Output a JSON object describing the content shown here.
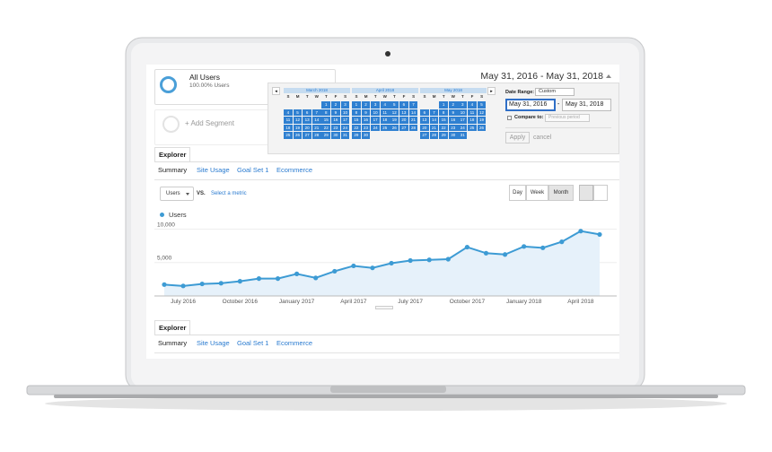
{
  "segments": [
    {
      "title": "All Users",
      "subtitle": "100.00% Users"
    },
    {
      "title": "+ Add Segment"
    }
  ],
  "date_range": "May 31, 2016 - May 31, 2018",
  "calendar": {
    "weekdays": [
      "S",
      "M",
      "T",
      "W",
      "T",
      "F",
      "S"
    ],
    "months": [
      {
        "name": "March 2018",
        "days": [
          null,
          null,
          null,
          null,
          1,
          2,
          3,
          4,
          5,
          6,
          7,
          8,
          9,
          10,
          11,
          12,
          13,
          14,
          15,
          16,
          17,
          18,
          19,
          20,
          21,
          22,
          23,
          24,
          25,
          26,
          27,
          28,
          29,
          30,
          31
        ]
      },
      {
        "name": "April 2018",
        "days": [
          1,
          2,
          3,
          4,
          5,
          6,
          7,
          8,
          9,
          10,
          11,
          12,
          13,
          14,
          15,
          16,
          17,
          18,
          19,
          20,
          21,
          22,
          23,
          24,
          25,
          26,
          27,
          28,
          29,
          30
        ]
      },
      {
        "name": "May 2018",
        "days": [
          null,
          null,
          1,
          2,
          3,
          4,
          5,
          6,
          7,
          8,
          9,
          10,
          11,
          12,
          13,
          14,
          15,
          16,
          17,
          18,
          19,
          20,
          21,
          22,
          23,
          24,
          25,
          26,
          27,
          28,
          29,
          30,
          31
        ]
      }
    ]
  },
  "date_panel": {
    "label": "Date Range:",
    "mode": "Custom",
    "start": "May 31, 2016",
    "separator": "-",
    "end": "May 31, 2018",
    "compare_label": "Compare to:",
    "compare_mode": "Previous period",
    "apply": "Apply",
    "cancel": "cancel"
  },
  "tabs": {
    "explorer": "Explorer",
    "subtabs": [
      "Summary",
      "Site Usage",
      "Goal Set 1",
      "Ecommerce"
    ]
  },
  "controls": {
    "metric": "Users",
    "vs": "VS.",
    "select_metric": "Select a metric",
    "granularity": [
      "Day",
      "Week",
      "Month"
    ]
  },
  "chart_data": {
    "type": "line",
    "categories": [
      null,
      "July 2016",
      null,
      null,
      "October 2016",
      null,
      null,
      "January 2017",
      null,
      null,
      "April 2017",
      null,
      null,
      "July 2017",
      null,
      null,
      "October 2017",
      null,
      null,
      "January 2018",
      null,
      null,
      "April 2018",
      null
    ],
    "series": [
      {
        "name": "Users",
        "color": "#3d9bd4",
        "values": [
          1700,
          1500,
          1800,
          1900,
          2200,
          2600,
          2600,
          3300,
          2700,
          3700,
          4500,
          4200,
          4900,
          5300,
          5400,
          5500,
          7300,
          6400,
          6200,
          7400,
          7200,
          8100,
          9700,
          9200
        ]
      }
    ],
    "ylim": [
      0,
      11000
    ],
    "yticks": [
      {
        "value": 5000,
        "label": "5,000"
      },
      {
        "value": 10000,
        "label": "10,000"
      }
    ],
    "grid": true
  }
}
